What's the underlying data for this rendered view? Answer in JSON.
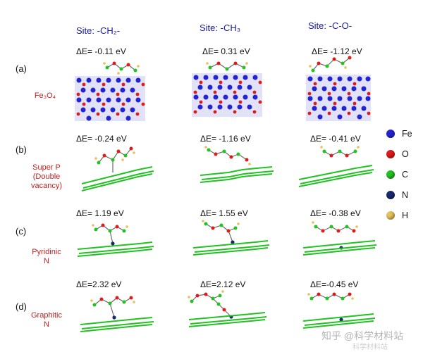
{
  "columns": [
    {
      "id": "ch2",
      "label": "Site: -CH₂-"
    },
    {
      "id": "ch3",
      "label": "Site: -CH₃"
    },
    {
      "id": "co",
      "label": "Site: -C-O-"
    }
  ],
  "rows": [
    {
      "letter": "(a)",
      "material_lines": [
        "Fe₃O₄"
      ],
      "energies": [
        "ΔE= -0.11 eV",
        "ΔE= 0.31 eV",
        "ΔE= -1.12 eV"
      ]
    },
    {
      "letter": "(b)",
      "material_lines": [
        "Super P",
        "(Double",
        "vacancy)"
      ],
      "energies": [
        "ΔE= -0.24 eV",
        "ΔE= -1.16 eV",
        "ΔE= -0.41 eV"
      ]
    },
    {
      "letter": "(c)",
      "material_lines": [
        "Pyridinic",
        "N"
      ],
      "energies": [
        "ΔE= 1.19 eV",
        "ΔE= 1.55 eV",
        "ΔE= -0.38 eV"
      ]
    },
    {
      "letter": "(d)",
      "material_lines": [
        "Graphitic",
        "N"
      ],
      "energies": [
        "ΔE=2.32 eV",
        "ΔE=2.12 eV",
        "ΔE=-0.45 eV"
      ]
    }
  ],
  "legend": [
    {
      "symbol": "Fe",
      "color": "#2323d6"
    },
    {
      "symbol": "O",
      "color": "#e01919"
    },
    {
      "symbol": "C",
      "color": "#22c222"
    },
    {
      "symbol": "N",
      "color": "#1a2a6a"
    },
    {
      "symbol": "H",
      "color": "#e6c25a"
    }
  ],
  "watermark": {
    "main": "知乎 @科学材料站",
    "sub": "科学材料站"
  }
}
